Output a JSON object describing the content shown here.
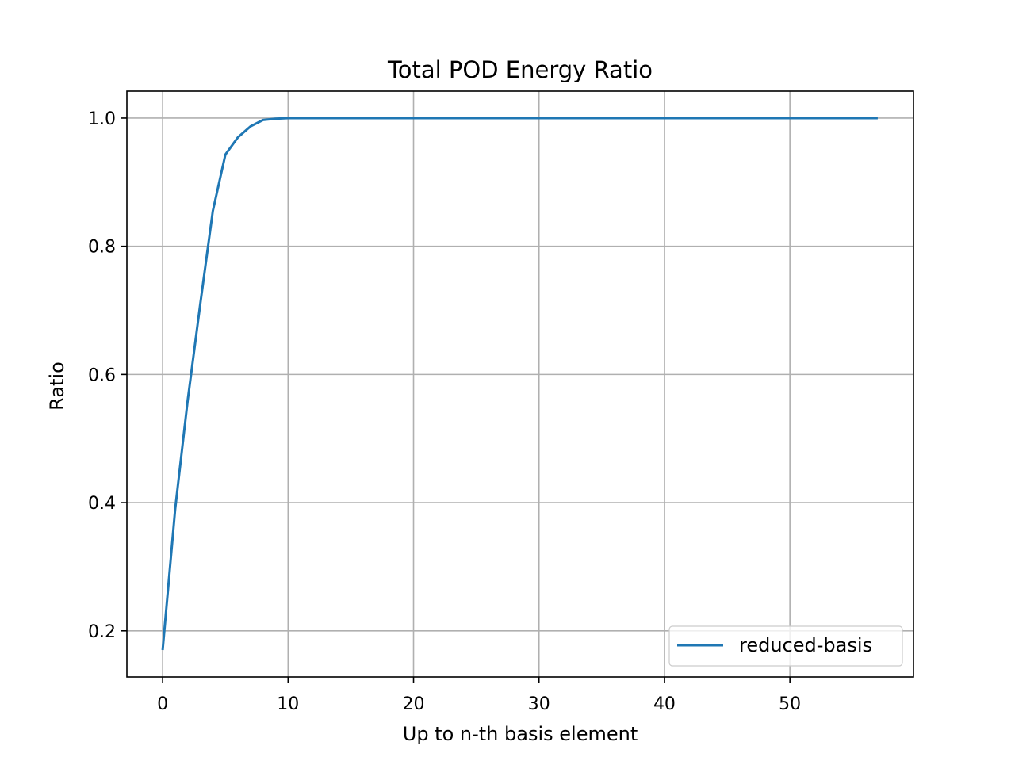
{
  "chart_data": {
    "type": "line",
    "title": "Total POD Energy Ratio",
    "xlabel": "Up to n-th basis element",
    "ylabel": "Ratio",
    "xlim": [
      -2.85,
      59.85
    ],
    "ylim": [
      0.128,
      1.042
    ],
    "xticks": [
      0,
      10,
      20,
      30,
      40,
      50
    ],
    "xtick_labels": [
      "0",
      "10",
      "20",
      "30",
      "40",
      "50"
    ],
    "yticks": [
      0.2,
      0.4,
      0.6,
      0.8,
      1.0
    ],
    "ytick_labels": [
      "0.2",
      "0.4",
      "0.6",
      "0.8",
      "1.0"
    ],
    "grid": true,
    "legend_position": "lower-right",
    "series": [
      {
        "name": "reduced-basis",
        "color": "#1f77b4",
        "x": [
          0,
          1,
          2,
          3,
          4,
          5,
          6,
          7,
          8,
          9,
          10,
          11,
          12,
          13,
          14,
          15,
          16,
          17,
          18,
          19,
          20,
          21,
          22,
          23,
          24,
          25,
          26,
          27,
          28,
          29,
          30,
          31,
          32,
          33,
          34,
          35,
          36,
          37,
          38,
          39,
          40,
          41,
          42,
          43,
          44,
          45,
          46,
          47,
          48,
          49,
          50,
          51,
          52,
          53,
          54,
          55,
          56,
          57
        ],
        "y": [
          0.17,
          0.39,
          0.56,
          0.71,
          0.855,
          0.943,
          0.97,
          0.987,
          0.997,
          0.999,
          1.0,
          1.0,
          1.0,
          1.0,
          1.0,
          1.0,
          1.0,
          1.0,
          1.0,
          1.0,
          1.0,
          1.0,
          1.0,
          1.0,
          1.0,
          1.0,
          1.0,
          1.0,
          1.0,
          1.0,
          1.0,
          1.0,
          1.0,
          1.0,
          1.0,
          1.0,
          1.0,
          1.0,
          1.0,
          1.0,
          1.0,
          1.0,
          1.0,
          1.0,
          1.0,
          1.0,
          1.0,
          1.0,
          1.0,
          1.0,
          1.0,
          1.0,
          1.0,
          1.0,
          1.0,
          1.0,
          1.0,
          1.0
        ]
      }
    ]
  }
}
